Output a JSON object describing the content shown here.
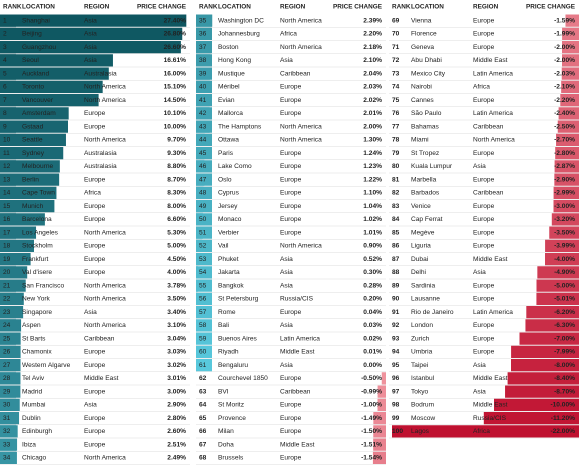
{
  "columns": [
    "RANK",
    "LOCATION",
    "REGION",
    "PRICE CHANGE"
  ],
  "rows": [
    [
      1,
      "Shanghai",
      "Asia",
      27.4,
      "27.40%"
    ],
    [
      2,
      "Beijing",
      "Asia",
      26.8,
      "26.80%"
    ],
    [
      3,
      "Guangzhou",
      "Asia",
      26.6,
      "26.60%"
    ],
    [
      4,
      "Seoul",
      "Asia",
      16.61,
      "16.61%"
    ],
    [
      5,
      "Auckland",
      "Australasia",
      16,
      "16.00%"
    ],
    [
      6,
      "Toronto",
      "North America",
      15.1,
      "15.10%"
    ],
    [
      7,
      "Vancouver",
      "North America",
      14.5,
      "14.50%"
    ],
    [
      8,
      "Amsterdam",
      "Europe",
      10.1,
      "10.10%"
    ],
    [
      9,
      "Gstaad",
      "Europe",
      10,
      "10.00%"
    ],
    [
      10,
      "Seattle",
      "North America",
      9.7,
      "9.70%"
    ],
    [
      11,
      "Sydney",
      "Australasia",
      9.3,
      "9.30%"
    ],
    [
      12,
      "Melbourne",
      "Australasia",
      8.8,
      "8.80%"
    ],
    [
      13,
      "Berlin",
      "Europe",
      8.7,
      "8.70%"
    ],
    [
      14,
      "Cape Town",
      "Africa",
      8.3,
      "8.30%"
    ],
    [
      15,
      "Munich",
      "Europe",
      8,
      "8.00%"
    ],
    [
      16,
      "Barcelona",
      "Europe",
      6.6,
      "6.60%"
    ],
    [
      17,
      "Los Angeles",
      "North America",
      5.3,
      "5.30%"
    ],
    [
      18,
      "Stockholm",
      "Europe",
      5,
      "5.00%"
    ],
    [
      19,
      "Frankfurt",
      "Europe",
      4.5,
      "4.50%"
    ],
    [
      20,
      "Val d'isere",
      "Europe",
      4,
      "4.00%"
    ],
    [
      21,
      "San Francisco",
      "North America",
      3.78,
      "3.78%"
    ],
    [
      22,
      "New York",
      "North America",
      3.5,
      "3.50%"
    ],
    [
      23,
      "Singapore",
      "Asia",
      3.4,
      "3.40%"
    ],
    [
      24,
      "Aspen",
      "North America",
      3.1,
      "3.10%"
    ],
    [
      25,
      "St Barts",
      "Caribbean",
      3.04,
      "3.04%"
    ],
    [
      26,
      "Chamonix",
      "Europe",
      3.03,
      "3.03%"
    ],
    [
      27,
      "Western Algarve",
      "Europe",
      3.02,
      "3.02%"
    ],
    [
      28,
      "Tel Aviv",
      "Middle East",
      3.01,
      "3.01%"
    ],
    [
      29,
      "Madrid",
      "Europe",
      3,
      "3.00%"
    ],
    [
      30,
      "Mumbai",
      "Asia",
      2.9,
      "2.90%"
    ],
    [
      31,
      "Dublin",
      "Europe",
      2.8,
      "2.80%"
    ],
    [
      32,
      "Edinburgh",
      "Europe",
      2.6,
      "2.60%"
    ],
    [
      33,
      "Ibiza",
      "Europe",
      2.51,
      "2.51%"
    ],
    [
      34,
      "Chicago",
      "North America",
      2.49,
      "2.49%"
    ],
    [
      35,
      "Washington DC",
      "North America",
      2.39,
      "2.39%"
    ],
    [
      36,
      "Johannesburg",
      "Africa",
      2.2,
      "2.20%"
    ],
    [
      37,
      "Boston",
      "North America",
      2.18,
      "2.18%"
    ],
    [
      38,
      "Hong Kong",
      "Asia",
      2.1,
      "2.10%"
    ],
    [
      39,
      "Mustique",
      "Caribbean",
      2.04,
      "2.04%"
    ],
    [
      40,
      "Méribel",
      "Europe",
      2.03,
      "2.03%"
    ],
    [
      41,
      "Evian",
      "Europe",
      2.02,
      "2.02%"
    ],
    [
      42,
      "Mallorca",
      "Europe",
      2.01,
      "2.01%"
    ],
    [
      43,
      "The Hamptons",
      "North America",
      2,
      "2.00%"
    ],
    [
      44,
      "Ottawa",
      "North America",
      1.3,
      "1.30%"
    ],
    [
      45,
      "Paris",
      "Europe",
      1.24,
      "1.24%"
    ],
    [
      46,
      "Lake Como",
      "Europe",
      1.23,
      "1.23%"
    ],
    [
      47,
      "Oslo",
      "Europe",
      1.22,
      "1.22%"
    ],
    [
      48,
      "Cyprus",
      "Europe",
      1.1,
      "1.10%"
    ],
    [
      49,
      "Jersey",
      "Europe",
      1.04,
      "1.04%"
    ],
    [
      50,
      "Monaco",
      "Europe",
      1.02,
      "1.02%"
    ],
    [
      51,
      "Verbier",
      "Europe",
      1.01,
      "1.01%"
    ],
    [
      52,
      "Vail",
      "North America",
      0.9,
      "0.90%"
    ],
    [
      53,
      "Phuket",
      "Asia",
      0.52,
      "0.52%"
    ],
    [
      54,
      "Jakarta",
      "Asia",
      0.3,
      "0.30%"
    ],
    [
      55,
      "Bangkok",
      "Asia",
      0.28,
      "0.28%"
    ],
    [
      56,
      "St Petersburg",
      "Russia/CIS",
      0.2,
      "0.20%"
    ],
    [
      57,
      "Rome",
      "Europe",
      0.04,
      "0.04%"
    ],
    [
      58,
      "Bali",
      "Asia",
      0.03,
      "0.03%"
    ],
    [
      59,
      "Buenos Aires",
      "Latin America",
      0.02,
      "0.02%"
    ],
    [
      60,
      "Riyadh",
      "Middle East",
      0.01,
      "0.01%"
    ],
    [
      61,
      "Bengaluru",
      "Asia",
      0,
      "0.00%"
    ],
    [
      62,
      "Courchevel 1850",
      "Europe",
      -0.5,
      "-0.50%"
    ],
    [
      63,
      "BVI",
      "Caribbean",
      -0.99,
      "-0.99%"
    ],
    [
      64,
      "St Moritz",
      "Europe",
      -1,
      "-1.00%"
    ],
    [
      65,
      "Provence",
      "Europe",
      -1.49,
      "-1.49%"
    ],
    [
      66,
      "Milan",
      "Europe",
      -1.5,
      "-1.50%"
    ],
    [
      67,
      "Doha",
      "Middle East",
      -1.51,
      "-1.51%"
    ],
    [
      68,
      "Brussels",
      "Europe",
      -1.54,
      "-1.54%"
    ],
    [
      69,
      "Vienna",
      "Europe",
      -1.59,
      "-1.59%"
    ],
    [
      70,
      "Florence",
      "Europe",
      -1.99,
      "-1.99%"
    ],
    [
      71,
      "Geneva",
      "Europe",
      -2,
      "-2.00%"
    ],
    [
      72,
      "Abu Dhabi",
      "Middle East",
      -2,
      "-2.00%"
    ],
    [
      73,
      "Mexico City",
      "Latin America",
      -2.03,
      "-2.03%"
    ],
    [
      74,
      "Nairobi",
      "Africa",
      -2.1,
      "-2.10%"
    ],
    [
      75,
      "Cannes",
      "Europe",
      -2.2,
      "-2.20%"
    ],
    [
      76,
      "São Paulo",
      "Latin America",
      -2.4,
      "-2.40%"
    ],
    [
      77,
      "Bahamas",
      "Caribbean",
      -2.5,
      "-2.50%"
    ],
    [
      78,
      "Miami",
      "North America",
      -2.7,
      "-2.70%"
    ],
    [
      79,
      "St Tropez",
      "Europe",
      -2.8,
      "-2.80%"
    ],
    [
      80,
      "Kuala Lumpur",
      "Asia",
      -2.87,
      "-2.87%"
    ],
    [
      81,
      "Marbella",
      "Europe",
      -2.9,
      "-2.90%"
    ],
    [
      82,
      "Barbados",
      "Caribbean",
      -2.99,
      "-2.99%"
    ],
    [
      83,
      "Venice",
      "Europe",
      -3,
      "-3.00%"
    ],
    [
      84,
      "Cap Ferrat",
      "Europe",
      -3.2,
      "-3.20%"
    ],
    [
      85,
      "Megève",
      "Europe",
      -3.5,
      "-3.50%"
    ],
    [
      86,
      "Liguria",
      "Europe",
      -3.99,
      "-3.99%"
    ],
    [
      87,
      "Dubai",
      "Middle East",
      -4,
      "-4.00%"
    ],
    [
      88,
      "Delhi",
      "Asia",
      -4.9,
      "-4.90%"
    ],
    [
      89,
      "Sardinia",
      "Europe",
      -5,
      "-5.00%"
    ],
    [
      90,
      "Lausanne",
      "Europe",
      -5.01,
      "-5.01%"
    ],
    [
      91,
      "Rio de Janeiro",
      "Latin America",
      -6.2,
      "-6.20%"
    ],
    [
      92,
      "London",
      "Europe",
      -6.3,
      "-6.30%"
    ],
    [
      93,
      "Zurich",
      "Europe",
      -7,
      "-7.00%"
    ],
    [
      94,
      "Umbria",
      "Europe",
      -7.99,
      "-7.99%"
    ],
    [
      95,
      "Taipei",
      "Asia",
      -8,
      "-8.00%"
    ],
    [
      96,
      "Istanbul",
      "Middle East",
      -8.4,
      "-8.40%"
    ],
    [
      97,
      "Tokyo",
      "Asia",
      -8.7,
      "-8.70%"
    ],
    [
      98,
      "Bodrum",
      "Middle East",
      -10,
      "-10.00%"
    ],
    [
      99,
      "Moscow",
      "Russia/CIS",
      -11.2,
      "-11.20%"
    ],
    [
      100,
      "Lagos",
      "Africa",
      -22,
      "-22.00%"
    ]
  ]
}
